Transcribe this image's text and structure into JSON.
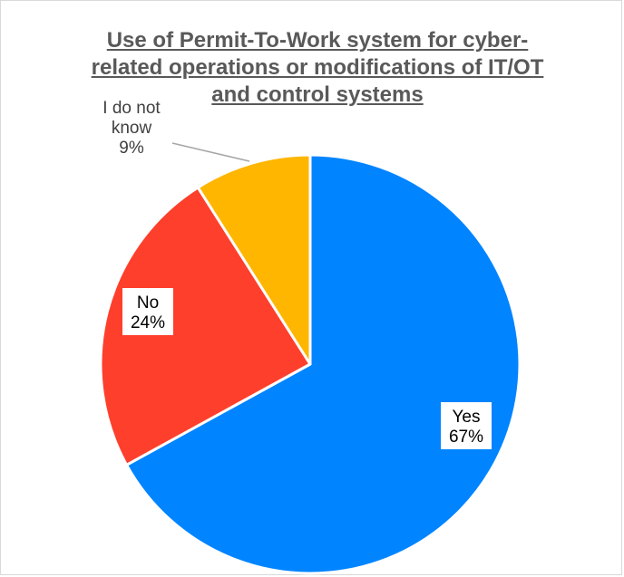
{
  "chart_data": {
    "type": "pie",
    "title_lines": [
      "Use of Permit-To-Work system for cyber-",
      "related operations or modifications of IT/OT",
      "and control systems"
    ],
    "slices": [
      {
        "label_lines": [
          "Yes"
        ],
        "value": 67,
        "value_label": "67%",
        "color": "#0084ff"
      },
      {
        "label_lines": [
          "No"
        ],
        "value": 24,
        "value_label": "24%",
        "color": "#fe3f2b"
      },
      {
        "label_lines": [
          "I do not",
          "know"
        ],
        "value": 9,
        "value_label": "9%",
        "color": "#ffb600"
      }
    ],
    "legend": "none"
  }
}
